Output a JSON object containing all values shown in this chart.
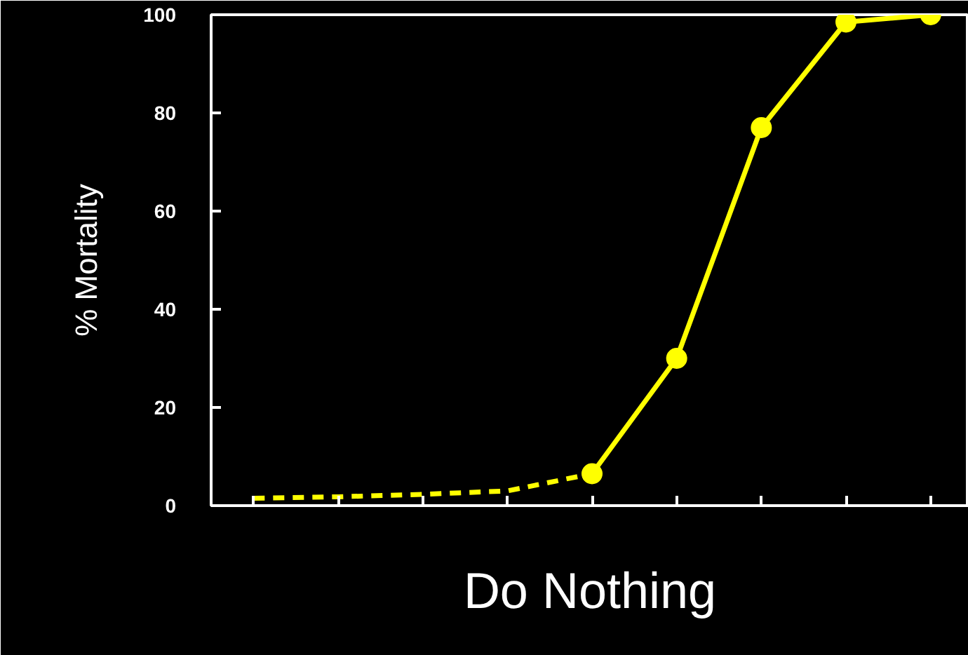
{
  "chart_data": {
    "type": "line",
    "ylabel": "% Mortality",
    "xlabel": "Do Nothing",
    "categories": [
      null,
      null,
      null,
      null,
      null,
      null,
      null,
      null,
      null
    ],
    "ylim": [
      0,
      100
    ],
    "yticks": [
      0,
      20,
      40,
      60,
      80,
      100
    ],
    "grid": false,
    "series": [
      {
        "color": "#ffff00",
        "line_style": "dashed",
        "marker": "none",
        "values": [
          1.5,
          1.8,
          2.3,
          3,
          6.5,
          null,
          null,
          null,
          null
        ]
      },
      {
        "color": "#ffff00",
        "line_style": "solid",
        "marker": "circle",
        "values": [
          null,
          null,
          null,
          null,
          6.5,
          30,
          77,
          98.5,
          100
        ]
      }
    ]
  }
}
